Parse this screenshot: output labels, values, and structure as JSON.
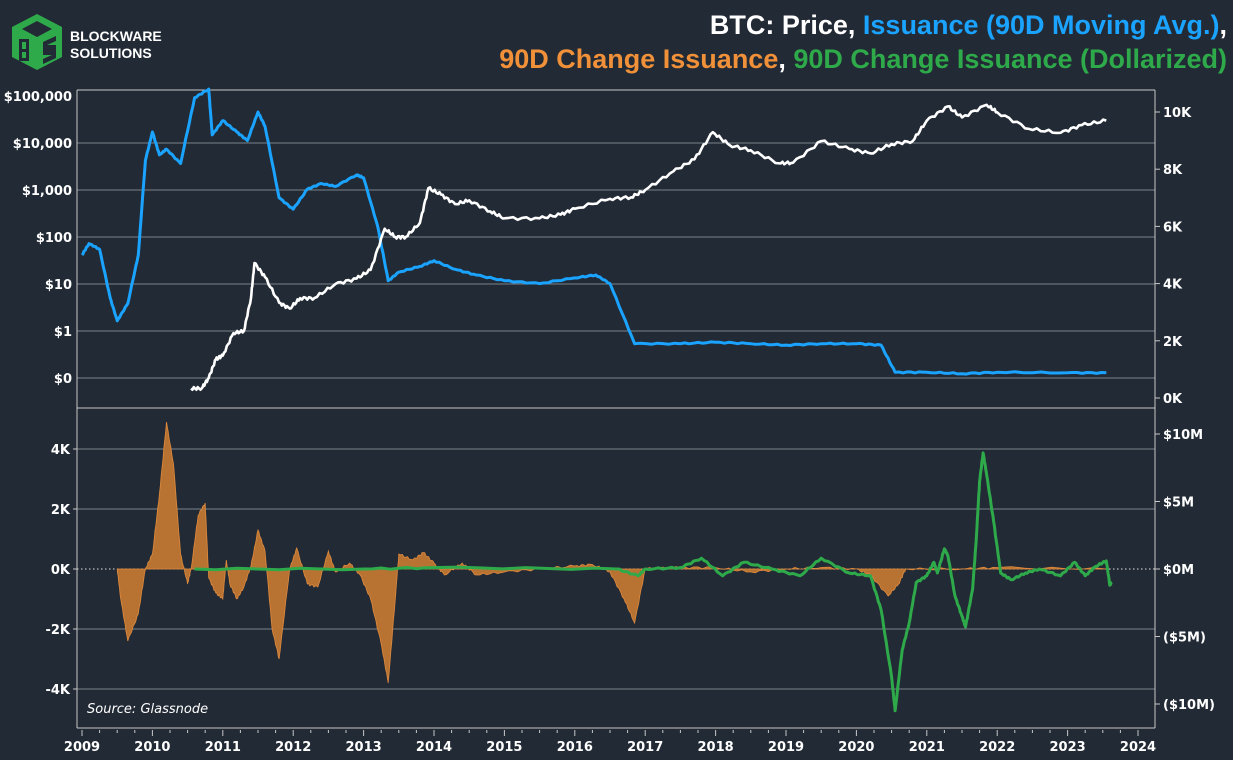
{
  "logo": {
    "line1": "BLOCKWARE",
    "line2": "SOLUTIONS",
    "color": "#2eaa4a"
  },
  "title": {
    "line1": [
      {
        "text": "BTC: Price, ",
        "color": "#ffffff"
      },
      {
        "text": "Issuance (90D Moving Avg.)",
        "color": "#1aa3ff"
      },
      {
        "text": ",",
        "color": "#ffffff"
      }
    ],
    "line2": [
      {
        "text": "90D Change Issuance",
        "color": "#f0913a"
      },
      {
        "text": ", ",
        "color": "#ffffff"
      },
      {
        "text": "90D Change Issuance (Dollarized)",
        "color": "#2eaa4a"
      }
    ]
  },
  "source": "Source: Glassnode",
  "chart_data": [
    {
      "type": "line",
      "panel": "top",
      "x_ticks": [
        "2009",
        "2010",
        "2011",
        "2012",
        "2013",
        "2014",
        "2015",
        "2016",
        "2017",
        "2018",
        "2019",
        "2020",
        "2021",
        "2022",
        "2023",
        "2024"
      ],
      "xlim": [
        2009,
        2024
      ],
      "left_axis": {
        "scale": "log",
        "ylim": [
          0.1,
          100000
        ],
        "tick_labels": [
          "$100,000",
          "$10,000",
          "$1,000",
          "$100",
          "$10",
          "$1",
          "$0"
        ],
        "tick_values": [
          100000,
          10000,
          1000,
          100,
          10,
          1,
          0.1
        ]
      },
      "right_axis": {
        "scale": "linear",
        "ylim": [
          0,
          10.9
        ],
        "tick_labels": [
          "10K",
          "8K",
          "6K",
          "4K",
          "2K",
          "0K"
        ],
        "tick_values": [
          10,
          8,
          6,
          4,
          2,
          0
        ]
      },
      "grid": true,
      "series": [
        {
          "name": "Price",
          "axis": "left",
          "color": "#ffffff",
          "x": [
            2010.55,
            2010.7,
            2010.8,
            2010.9,
            2011.0,
            2011.15,
            2011.3,
            2011.4,
            2011.45,
            2011.6,
            2011.8,
            2011.95,
            2012.1,
            2012.3,
            2012.6,
            2012.9,
            2013.1,
            2013.3,
            2013.45,
            2013.6,
            2013.8,
            2013.92,
            2014.1,
            2014.3,
            2014.5,
            2014.8,
            2015.0,
            2015.5,
            2015.8,
            2016.0,
            2016.5,
            2016.8,
            2017.0,
            2017.4,
            2017.7,
            2017.96,
            2018.2,
            2018.5,
            2018.9,
            2019.1,
            2019.5,
            2019.9,
            2020.2,
            2020.5,
            2020.8,
            2021.0,
            2021.3,
            2021.5,
            2021.85,
            2022.0,
            2022.45,
            2022.9,
            2023.2,
            2023.55
          ],
          "y": [
            0.06,
            0.06,
            0.1,
            0.25,
            0.3,
            0.9,
            1,
            5,
            28,
            14,
            4,
            3,
            5,
            5,
            10,
            13,
            20,
            150,
            100,
            100,
            200,
            1100,
            800,
            500,
            600,
            350,
            250,
            250,
            300,
            400,
            650,
            700,
            1000,
            2500,
            4500,
            17000,
            9000,
            7000,
            3700,
            3800,
            11000,
            7500,
            6000,
            9500,
            11000,
            30000,
            60000,
            35000,
            65000,
            45000,
            20000,
            16500,
            24000,
            30000
          ]
        },
        {
          "name": "Issuance (90D Moving Avg.)",
          "axis": "right",
          "color": "#1aa3ff",
          "x": [
            2009.0,
            2009.1,
            2009.25,
            2009.4,
            2009.5,
            2009.65,
            2009.8,
            2009.9,
            2010.0,
            2010.1,
            2010.2,
            2010.4,
            2010.6,
            2010.8,
            2010.85,
            2011.0,
            2011.2,
            2011.35,
            2011.5,
            2011.6,
            2011.8,
            2012.0,
            2012.2,
            2012.4,
            2012.6,
            2012.9,
            2013.0,
            2013.2,
            2013.35,
            2013.5,
            2013.8,
            2014.0,
            2014.3,
            2014.6,
            2015.0,
            2015.5,
            2016.0,
            2016.3,
            2016.5,
            2016.85,
            2017.5,
            2018.0,
            2018.5,
            2019.0,
            2019.5,
            2020.0,
            2020.35,
            2020.55,
            2021.0,
            2021.5,
            2022.0,
            2023.0,
            2023.55
          ],
          "y": [
            5.0,
            5.4,
            5.2,
            3.5,
            2.7,
            3.3,
            5.0,
            8.3,
            9.3,
            8.5,
            8.7,
            8.2,
            10.5,
            10.8,
            9.2,
            9.7,
            9.3,
            9.0,
            10.0,
            9.5,
            7.0,
            6.6,
            7.3,
            7.5,
            7.4,
            7.8,
            7.7,
            6.0,
            4.1,
            4.4,
            4.6,
            4.8,
            4.5,
            4.3,
            4.1,
            4.0,
            4.2,
            4.3,
            4.0,
            1.9,
            1.9,
            1.95,
            1.9,
            1.85,
            1.9,
            1.9,
            1.85,
            0.9,
            0.9,
            0.85,
            0.9,
            0.88,
            0.88
          ]
        }
      ]
    },
    {
      "type": "area",
      "panel": "bottom",
      "xlim": [
        2009,
        2024
      ],
      "left_axis": {
        "ylim": [
          -5.3,
          5.3
        ],
        "tick_labels": [
          "4K",
          "2K",
          "0K",
          "-2K",
          "-4K"
        ],
        "tick_values": [
          4,
          2,
          0,
          -2,
          -4
        ]
      },
      "right_axis": {
        "ylim": [
          -11.1,
          11.1
        ],
        "tick_labels": [
          "$10M",
          "$5M",
          "$0M",
          "($5M)",
          "($10M)"
        ],
        "tick_values": [
          10,
          5,
          0,
          -5,
          -10
        ]
      },
      "grid": true,
      "series": [
        {
          "name": "90D Change Issuance",
          "axis": "left",
          "color": "#f0913a",
          "kind": "area",
          "x": [
            2009.5,
            2009.55,
            2009.65,
            2009.8,
            2009.9,
            2010.0,
            2010.1,
            2010.2,
            2010.3,
            2010.4,
            2010.5,
            2010.55,
            2010.65,
            2010.75,
            2010.8,
            2010.9,
            2011.0,
            2011.05,
            2011.1,
            2011.2,
            2011.3,
            2011.4,
            2011.5,
            2011.6,
            2011.7,
            2011.8,
            2011.95,
            2012.05,
            2012.2,
            2012.35,
            2012.5,
            2012.6,
            2012.8,
            2012.95,
            2013.1,
            2013.25,
            2013.35,
            2013.45,
            2013.5,
            2013.7,
            2013.85,
            2014.0,
            2014.15,
            2014.4,
            2014.6,
            2015.0,
            2015.5,
            2016.0,
            2016.25,
            2016.5,
            2016.7,
            2016.85,
            2017.0,
            2017.5,
            2018.0,
            2018.5,
            2019.0,
            2019.5,
            2020.0,
            2020.2,
            2020.45,
            2020.6,
            2020.7,
            2021.5,
            2022.0,
            2023.55
          ],
          "y": [
            0,
            -1.0,
            -2.4,
            -1.5,
            0,
            0.5,
            2.5,
            4.9,
            3.5,
            0.5,
            -0.5,
            0,
            1.8,
            2.2,
            -0.3,
            -0.8,
            -1.0,
            0.3,
            -0.5,
            -1.0,
            -0.6,
            0.1,
            1.3,
            0.6,
            -2.0,
            -3.0,
            0,
            0.7,
            -0.5,
            -0.6,
            0.6,
            -0.1,
            0.2,
            -0.2,
            -1.0,
            -2.5,
            -3.8,
            -1.0,
            0.5,
            0.3,
            0.55,
            0.2,
            -0.2,
            0.2,
            -0.2,
            -0.1,
            0,
            0.1,
            0.15,
            -0.1,
            -1.0,
            -1.8,
            0,
            0.05,
            0.05,
            -0.1,
            0,
            0.05,
            0,
            -0.2,
            -0.9,
            -0.5,
            0,
            0,
            0.05,
            0
          ]
        },
        {
          "name": "90D Change Issuance (Dollarized)",
          "axis": "right",
          "color": "#2eaa4a",
          "kind": "line",
          "x": [
            2010.6,
            2013.0,
            2014.0,
            2016.6,
            2016.9,
            2017.0,
            2017.5,
            2017.8,
            2018.1,
            2018.4,
            2018.8,
            2019.2,
            2019.5,
            2019.9,
            2020.2,
            2020.35,
            2020.5,
            2020.55,
            2020.65,
            2020.75,
            2020.85,
            2021.0,
            2021.1,
            2021.15,
            2021.25,
            2021.3,
            2021.4,
            2021.5,
            2021.55,
            2021.65,
            2021.7,
            2021.75,
            2021.8,
            2021.85,
            2021.95,
            2022.05,
            2022.2,
            2022.4,
            2022.6,
            2022.9,
            2023.1,
            2023.25,
            2023.4,
            2023.55,
            2023.6,
            2023.62
          ],
          "y": [
            0,
            0,
            0.1,
            0,
            -0.5,
            0,
            0.1,
            0.8,
            -0.5,
            0.5,
            0,
            -0.5,
            0.8,
            -0.3,
            -0.5,
            -3,
            -8,
            -10.5,
            -6,
            -4,
            -1,
            -0.5,
            0.5,
            -0.3,
            1.5,
            1.0,
            -2,
            -3.5,
            -4.3,
            -1.5,
            2,
            6.5,
            8.6,
            7,
            3.5,
            -0.3,
            -0.8,
            -0.3,
            0,
            -0.5,
            0.5,
            -0.5,
            0.2,
            0.6,
            -1.2,
            -1.0
          ]
        }
      ]
    }
  ]
}
